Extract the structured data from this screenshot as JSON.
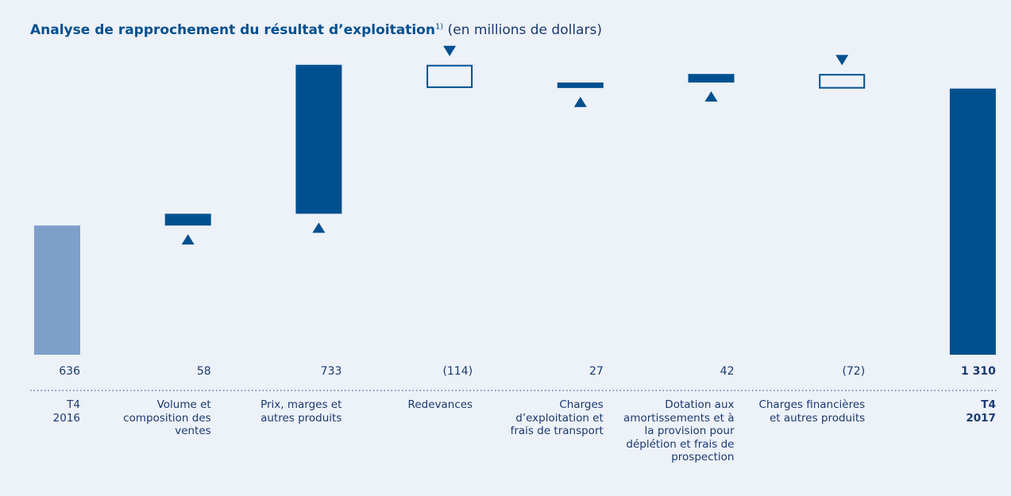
{
  "chart_data": {
    "type": "waterfall",
    "title": "Analyse de rapprochement du résultat d’exploitation",
    "title_note": "1)",
    "subtitle": "(en millions de dollars)",
    "categories": [
      "T4 2016",
      "Volume et composition des ventes",
      "Prix, marges et autres produits",
      "Redevances",
      "Charges d’exploitation et frais de transport",
      "Dotation aux amortissements et à la provision pour déplétion et frais de prospection",
      "Charges financières et autres produits",
      "T4 2017"
    ],
    "values": [
      636,
      58,
      733,
      -114,
      27,
      42,
      -72,
      1310
    ],
    "value_labels": [
      "636",
      "58",
      "733",
      "(114)",
      "27",
      "42",
      "(72)",
      "1 310"
    ],
    "ylim": [
      0,
      1500
    ],
    "colors": {
      "start": "#7f9fcb",
      "increase": "#00508f",
      "decrease": "#00508f",
      "total": "#00508f"
    }
  }
}
